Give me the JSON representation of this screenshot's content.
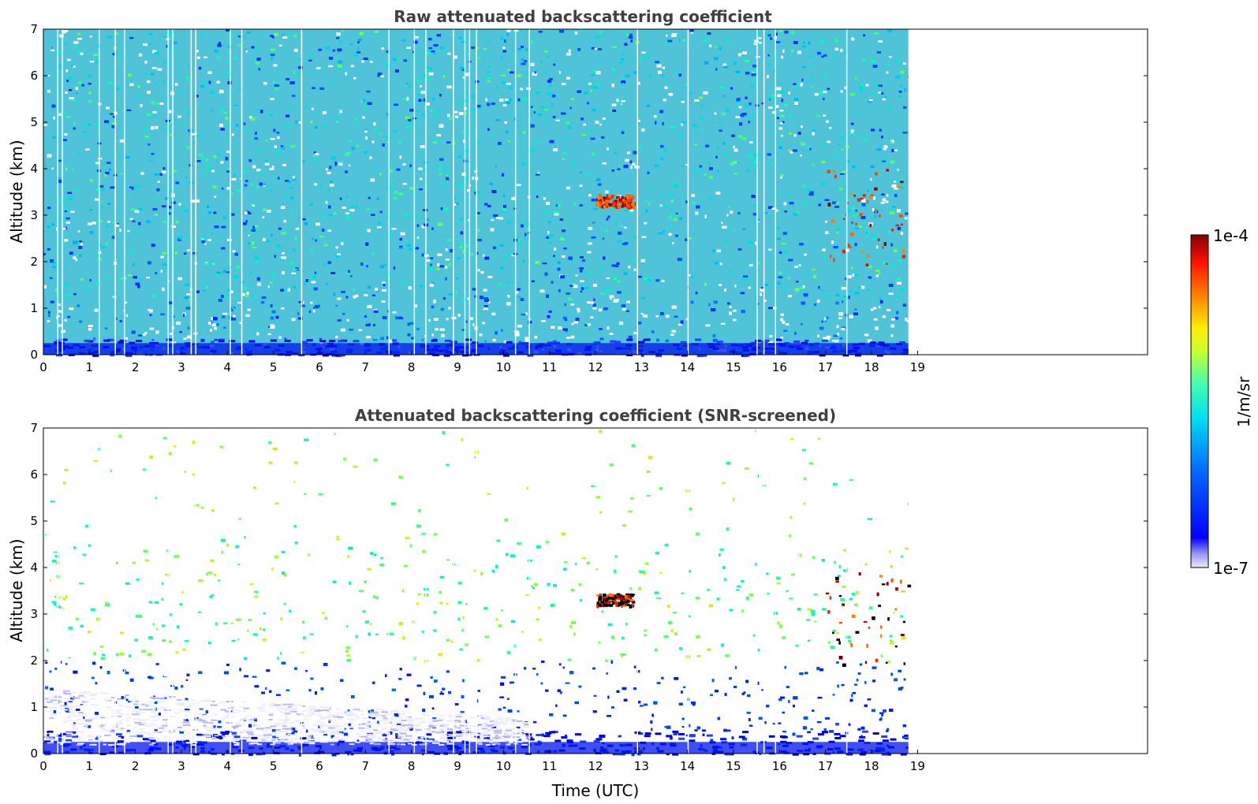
{
  "chart_data": [
    {
      "type": "heatmap",
      "title": "Raw attenuated backscattering coefficient",
      "xlabel": "",
      "ylabel": "Altitude (km)",
      "xlim": [
        0,
        24
      ],
      "ylim": [
        0,
        7
      ],
      "xticks": [
        "0",
        "1",
        "2",
        "3",
        "4",
        "5",
        "6",
        "7",
        "8",
        "9",
        "10",
        "11",
        "12",
        "13",
        "14",
        "15",
        "16",
        "17",
        "18",
        "19"
      ],
      "yticks": [
        "0",
        "1",
        "2",
        "3",
        "4",
        "5",
        "6",
        "7"
      ],
      "data_extent_hours": [
        0,
        18.8
      ],
      "data_gaps_hours": [
        0.3,
        0.4,
        1.2,
        1.55,
        1.75,
        2.7,
        2.8,
        3.2,
        3.3,
        4.05,
        4.3,
        5.6,
        7.5,
        8.05,
        8.3,
        8.9,
        9.15,
        9.25,
        9.4,
        10.25,
        10.55,
        12.9,
        14.0,
        15.5,
        15.65,
        15.9,
        17.45
      ],
      "features": [
        {
          "type": "cloud",
          "time_hours": [
            12.0,
            12.8
          ],
          "altitude_km": [
            3.2,
            3.45
          ]
        },
        {
          "type": "cloud",
          "time_hours": [
            17.0,
            18.8
          ],
          "altitude_km": [
            1.9,
            4.0
          ]
        },
        {
          "type": "boundary_layer",
          "time_hours": [
            0,
            18.8
          ],
          "altitude_km": [
            0,
            0.35
          ]
        }
      ],
      "grid": false
    },
    {
      "type": "heatmap",
      "title": "Attenuated backscattering coefficient (SNR-screened)",
      "xlabel": "Time (UTC)",
      "ylabel": "Altitude (km)",
      "xlim": [
        0,
        24
      ],
      "ylim": [
        0,
        7
      ],
      "xticks": [
        "0",
        "1",
        "2",
        "3",
        "4",
        "5",
        "6",
        "7",
        "8",
        "9",
        "10",
        "11",
        "12",
        "13",
        "14",
        "15",
        "16",
        "17",
        "18",
        "19"
      ],
      "yticks": [
        "0",
        "1",
        "2",
        "3",
        "4",
        "5",
        "6",
        "7"
      ],
      "data_extent_hours": [
        0,
        18.8
      ],
      "data_gaps_hours": [
        0.3,
        0.4,
        1.2,
        1.55,
        1.75,
        2.7,
        2.8,
        3.2,
        3.3,
        4.05,
        4.3,
        5.6,
        7.5,
        8.05,
        8.3,
        8.9,
        9.15,
        9.25,
        9.4,
        10.25,
        10.55,
        12.9,
        14.0,
        15.5,
        15.65,
        15.9,
        17.45
      ],
      "features": [
        {
          "type": "cloud",
          "time_hours": [
            12.0,
            12.8
          ],
          "altitude_km": [
            3.2,
            3.45
          ]
        },
        {
          "type": "cloud",
          "time_hours": [
            17.0,
            18.8
          ],
          "altitude_km": [
            1.9,
            4.0
          ]
        },
        {
          "type": "screened_low_signal",
          "time_hours": [
            0,
            10.5
          ],
          "altitude_km": [
            0.2,
            1.2
          ]
        }
      ],
      "grid": false
    }
  ],
  "colorbar": {
    "label": "1/m/sr",
    "max_label": "1e-4",
    "min_label": "1e-7",
    "colormap": "jet",
    "scale": "log",
    "range": [
      1e-07,
      0.0001
    ]
  }
}
